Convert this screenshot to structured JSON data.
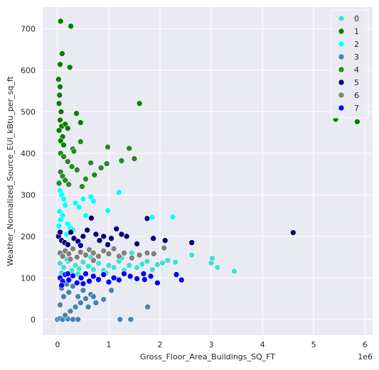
{
  "chart_data": {
    "type": "scatter",
    "xlabel": "Gross_Floor_Area_Buildings_SQ_FT",
    "ylabel": "Weather_Normalized_Source_EUI_kBtu_per_sq_ft",
    "x_offset_label": "1e6",
    "xlim": [
      -0.29,
      6.15
    ],
    "ylim": [
      -38,
      752
    ],
    "x_ticks": [
      0,
      1,
      2,
      3,
      4,
      5,
      6
    ],
    "y_ticks": [
      0,
      100,
      200,
      300,
      400,
      500,
      600,
      700
    ],
    "grid": true,
    "legend_position": "upper-right",
    "series": [
      {
        "name": "0",
        "color": "#40e0d0",
        "points": [
          [
            0.05,
            135
          ],
          [
            0.12,
            125
          ],
          [
            0.2,
            140
          ],
          [
            0.28,
            118
          ],
          [
            0.35,
            130
          ],
          [
            0.42,
            122
          ],
          [
            0.5,
            138
          ],
          [
            0.6,
            128
          ],
          [
            0.7,
            120
          ],
          [
            0.8,
            135
          ],
          [
            0.9,
            118
          ],
          [
            1.0,
            130
          ],
          [
            1.1,
            125
          ],
          [
            1.2,
            140
          ],
          [
            1.3,
            118
          ],
          [
            1.4,
            130
          ],
          [
            1.45,
            160
          ],
          [
            1.55,
            125
          ],
          [
            1.65,
            133
          ],
          [
            1.75,
            140
          ],
          [
            1.85,
            120
          ],
          [
            1.95,
            132
          ],
          [
            2.05,
            136
          ],
          [
            2.15,
            142
          ],
          [
            2.3,
            138
          ],
          [
            2.62,
            155
          ],
          [
            3.0,
            136
          ],
          [
            3.02,
            147
          ],
          [
            3.12,
            125
          ],
          [
            3.45,
            116
          ],
          [
            0.08,
            112
          ],
          [
            0.18,
            145
          ],
          [
            0.4,
            110
          ],
          [
            0.65,
            150
          ],
          [
            0.95,
            112
          ],
          [
            1.25,
            148
          ]
        ]
      },
      {
        "name": "1",
        "color": "#008000",
        "points": [
          [
            0.06,
            718
          ],
          [
            0.26,
            706
          ],
          [
            0.05,
            614
          ],
          [
            0.09,
            640
          ],
          [
            0.24,
            607
          ],
          [
            0.02,
            578
          ],
          [
            0.05,
            560
          ],
          [
            0.04,
            540
          ],
          [
            0.03,
            520
          ],
          [
            0.07,
            500
          ],
          [
            0.05,
            480
          ],
          [
            0.08,
            465
          ],
          [
            0.03,
            455
          ],
          [
            0.1,
            440
          ],
          [
            0.06,
            430
          ],
          [
            0.12,
            420
          ],
          [
            0.15,
            470
          ],
          [
            0.2,
            460
          ],
          [
            0.37,
            496
          ],
          [
            0.45,
            474
          ],
          [
            1.6,
            520
          ],
          [
            5.43,
            482
          ],
          [
            5.85,
            476
          ],
          [
            0.3,
            410
          ]
        ]
      },
      {
        "name": "2",
        "color": "#00ffff",
        "points": [
          [
            0.02,
            330
          ],
          [
            0.05,
            310
          ],
          [
            0.08,
            300
          ],
          [
            0.12,
            290
          ],
          [
            0.15,
            275
          ],
          [
            0.04,
            260
          ],
          [
            0.1,
            250
          ],
          [
            0.06,
            240
          ],
          [
            0.2,
            230
          ],
          [
            0.25,
            220
          ],
          [
            0.3,
            215
          ],
          [
            0.35,
            280
          ],
          [
            0.42,
            270
          ],
          [
            0.5,
            290
          ],
          [
            0.55,
            250
          ],
          [
            0.65,
            295
          ],
          [
            0.7,
            285
          ],
          [
            0.98,
            262
          ],
          [
            1.2,
            306
          ],
          [
            1.85,
            246
          ],
          [
            2.25,
            247
          ],
          [
            0.03,
            225
          ],
          [
            0.18,
            205
          ]
        ]
      },
      {
        "name": "3",
        "color": "#4682b4",
        "points": [
          [
            0.0,
            0
          ],
          [
            0.05,
            2
          ],
          [
            0.1,
            0
          ],
          [
            0.2,
            1
          ],
          [
            0.3,
            0
          ],
          [
            0.4,
            0
          ],
          [
            0.15,
            10
          ],
          [
            0.25,
            20
          ],
          [
            0.35,
            30
          ],
          [
            0.45,
            40
          ],
          [
            0.55,
            50
          ],
          [
            0.65,
            60
          ],
          [
            0.05,
            35
          ],
          [
            0.12,
            55
          ],
          [
            0.08,
            75
          ],
          [
            0.22,
            65
          ],
          [
            0.18,
            85
          ],
          [
            0.3,
            80
          ],
          [
            0.5,
            70
          ],
          [
            0.7,
            55
          ],
          [
            0.9,
            48
          ],
          [
            1.05,
            70
          ],
          [
            1.22,
            0
          ],
          [
            1.43,
            0
          ],
          [
            1.76,
            30
          ],
          [
            0.75,
            40
          ],
          [
            0.6,
            30
          ],
          [
            0.4,
            55
          ]
        ]
      },
      {
        "name": "4",
        "color": "#228b22",
        "points": [
          [
            0.06,
            400
          ],
          [
            0.12,
            392
          ],
          [
            0.2,
            380
          ],
          [
            0.28,
            368
          ],
          [
            0.06,
            355
          ],
          [
            0.1,
            345
          ],
          [
            0.15,
            335
          ],
          [
            0.22,
            325
          ],
          [
            0.32,
            405
          ],
          [
            0.45,
            428
          ],
          [
            0.48,
            320
          ],
          [
            0.55,
            338
          ],
          [
            0.65,
            377
          ],
          [
            0.72,
            348
          ],
          [
            0.96,
            375
          ],
          [
            0.98,
            415
          ],
          [
            1.25,
            382
          ],
          [
            1.4,
            412
          ],
          [
            1.5,
            387
          ],
          [
            0.03,
            328
          ],
          [
            0.38,
            360
          ],
          [
            0.85,
            365
          ]
        ]
      },
      {
        "name": "5",
        "color": "#000080",
        "points": [
          [
            0.02,
            200
          ],
          [
            0.08,
            190
          ],
          [
            0.14,
            185
          ],
          [
            0.2,
            180
          ],
          [
            0.26,
            210
          ],
          [
            0.32,
            195
          ],
          [
            0.4,
            188
          ],
          [
            0.5,
            200
          ],
          [
            0.58,
            215
          ],
          [
            0.66,
            244
          ],
          [
            0.75,
            205
          ],
          [
            0.82,
            190
          ],
          [
            0.9,
            200
          ],
          [
            0.98,
            180
          ],
          [
            1.05,
            195
          ],
          [
            1.15,
            218
          ],
          [
            1.25,
            205
          ],
          [
            1.35,
            200
          ],
          [
            1.55,
            182
          ],
          [
            1.75,
            243
          ],
          [
            1.87,
            195
          ],
          [
            2.1,
            190
          ],
          [
            2.62,
            185
          ],
          [
            4.6,
            209
          ],
          [
            0.05,
            210
          ],
          [
            0.45,
            178
          ]
        ]
      },
      {
        "name": "6",
        "color": "#808080",
        "points": [
          [
            0.05,
            160
          ],
          [
            0.1,
            152
          ],
          [
            0.15,
            165
          ],
          [
            0.22,
            158
          ],
          [
            0.3,
            170
          ],
          [
            0.38,
            150
          ],
          [
            0.45,
            162
          ],
          [
            0.55,
            155
          ],
          [
            0.62,
            168
          ],
          [
            0.7,
            160
          ],
          [
            0.8,
            152
          ],
          [
            0.9,
            165
          ],
          [
            1.0,
            158
          ],
          [
            1.1,
            170
          ],
          [
            1.2,
            152
          ],
          [
            1.3,
            160
          ],
          [
            1.45,
            148
          ],
          [
            1.6,
            155
          ],
          [
            1.75,
            160
          ],
          [
            1.88,
            158
          ],
          [
            2.08,
            172
          ],
          [
            0.25,
            145
          ],
          [
            0.7,
            142
          ]
        ]
      },
      {
        "name": "7",
        "color": "#0000ff",
        "points": [
          [
            0.05,
            100
          ],
          [
            0.1,
            92
          ],
          [
            0.15,
            108
          ],
          [
            0.22,
            95
          ],
          [
            0.3,
            105
          ],
          [
            0.38,
            88
          ],
          [
            0.46,
            100
          ],
          [
            0.55,
            110
          ],
          [
            0.62,
            92
          ],
          [
            0.7,
            104
          ],
          [
            0.8,
            96
          ],
          [
            0.9,
            108
          ],
          [
            1.0,
            90
          ],
          [
            1.1,
            100
          ],
          [
            1.2,
            95
          ],
          [
            1.3,
            110
          ],
          [
            1.42,
            104
          ],
          [
            1.55,
            98
          ],
          [
            1.68,
            110
          ],
          [
            1.7,
            96
          ],
          [
            1.82,
            104
          ],
          [
            1.95,
            88
          ],
          [
            2.32,
            108
          ],
          [
            2.42,
            95
          ],
          [
            0.08,
            82
          ],
          [
            0.2,
            110
          ],
          [
            0.5,
            86
          ]
        ]
      }
    ]
  }
}
